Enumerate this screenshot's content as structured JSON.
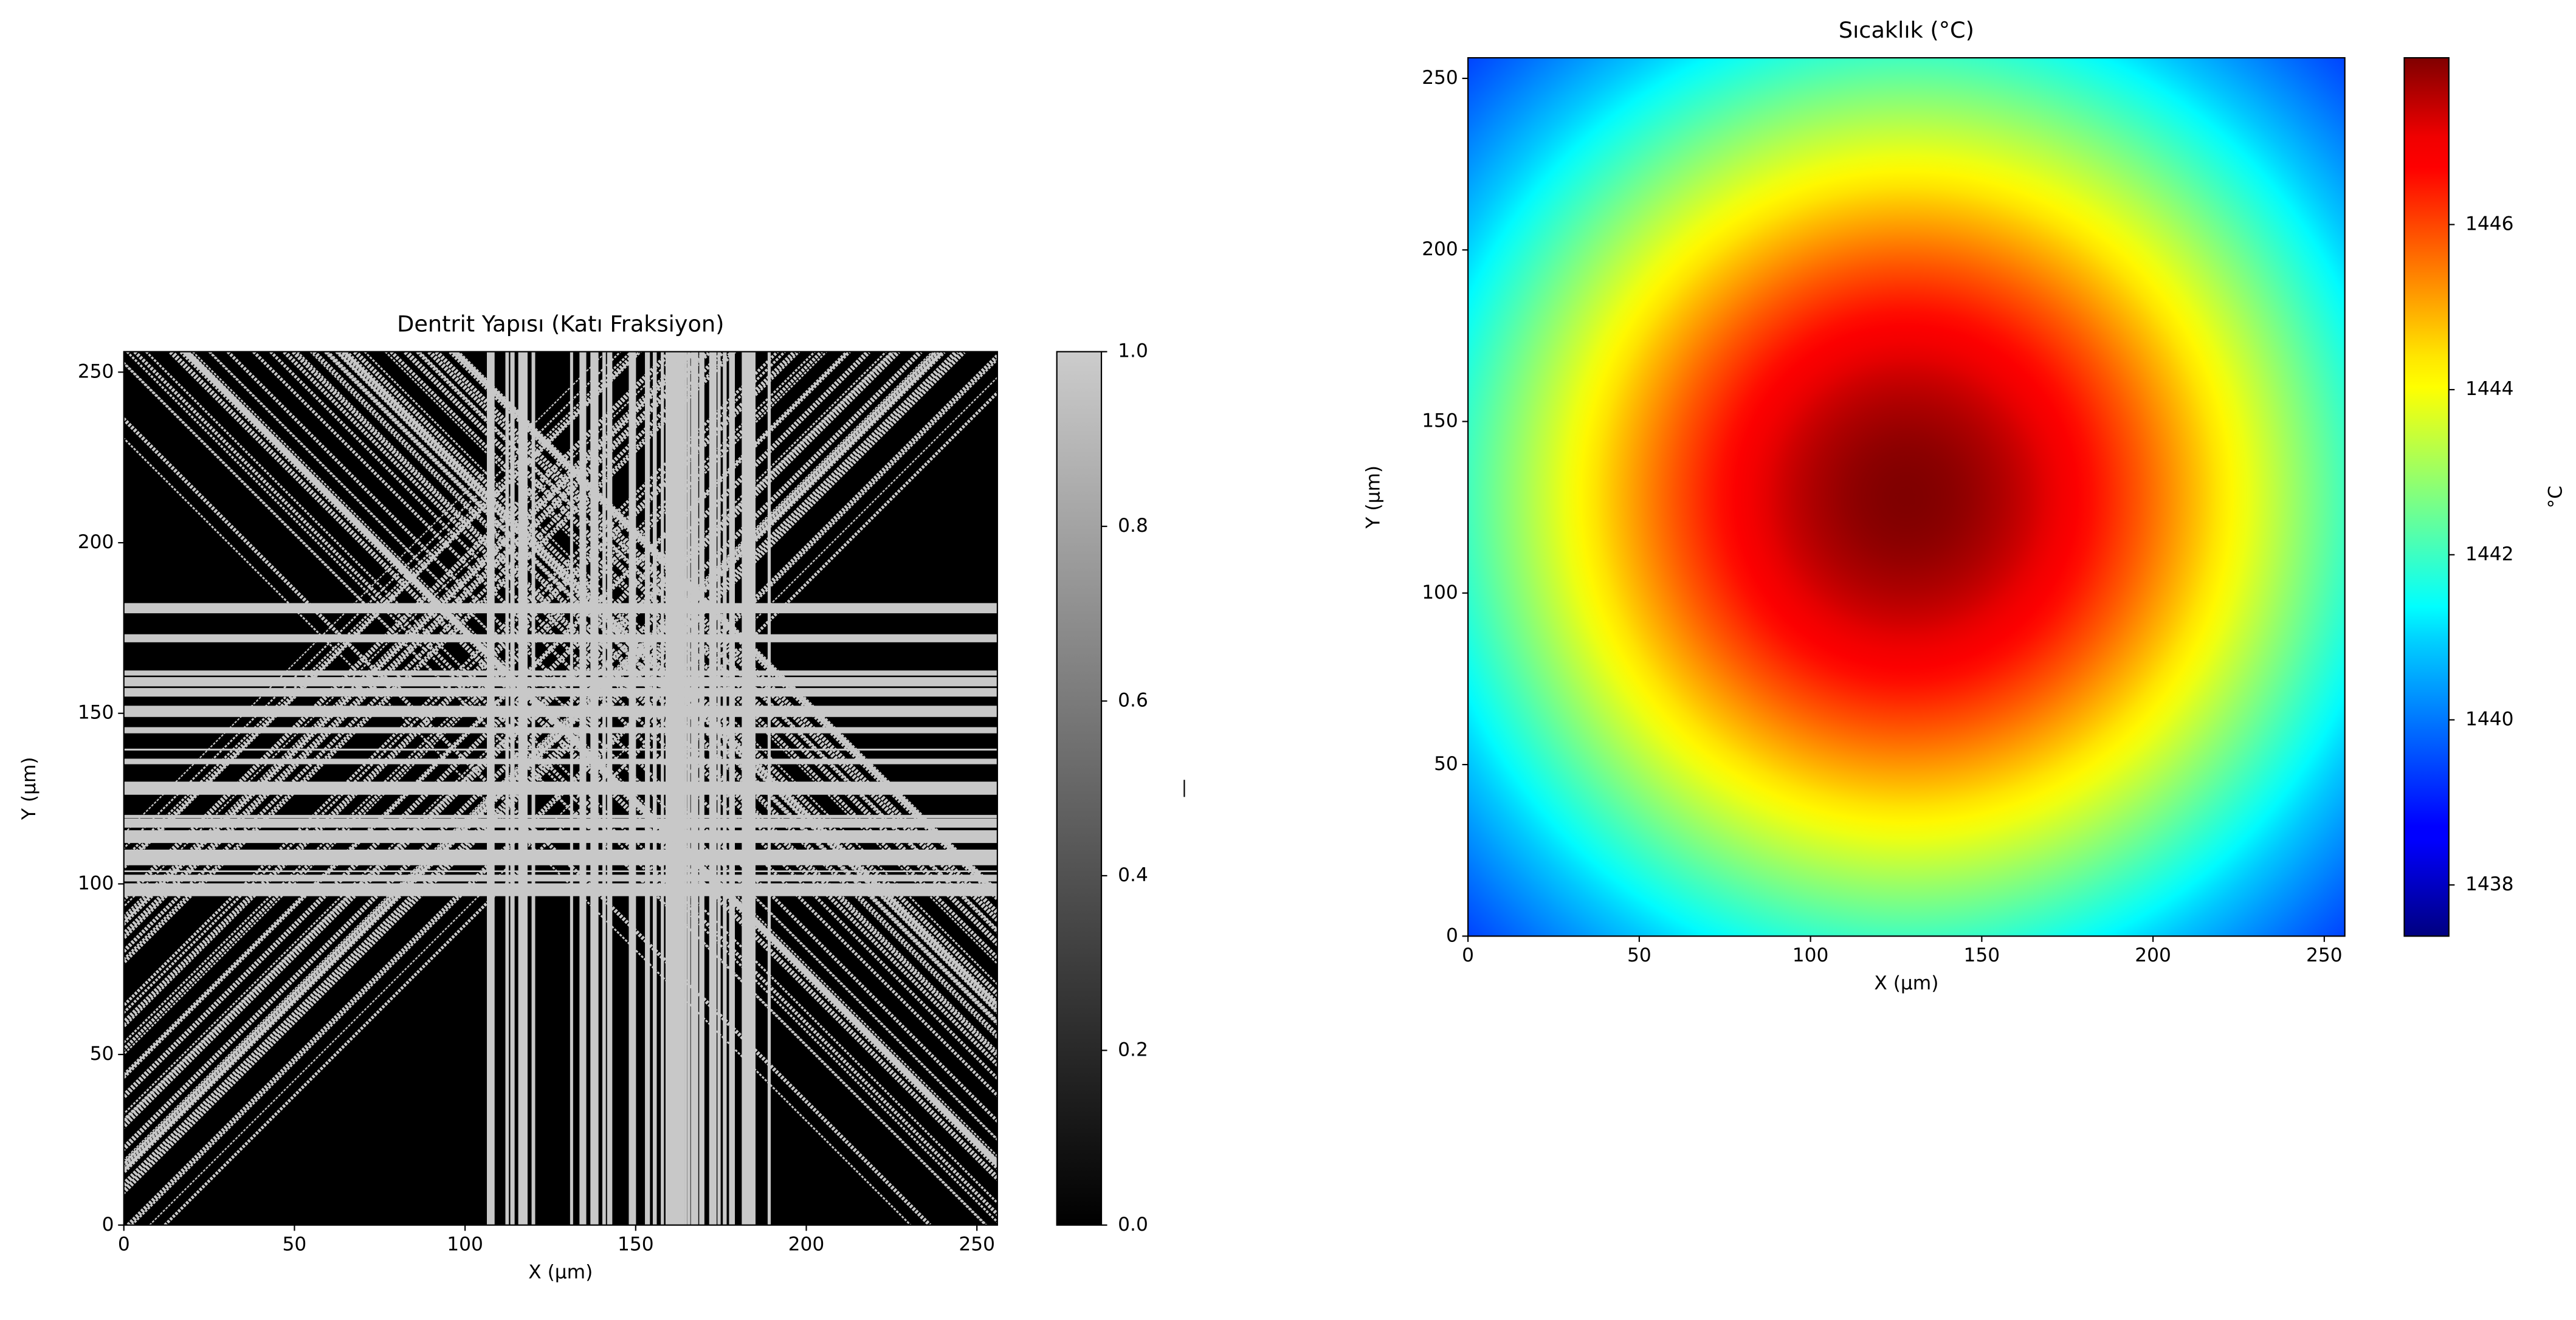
{
  "chart_data": [
    {
      "type": "heatmap",
      "title": "Dentrit Yapısı (Katı Fraksiyon)",
      "x_label": "X (μm)",
      "y_label": "Y (μm)",
      "xlim": [
        0,
        256
      ],
      "ylim": [
        0,
        256
      ],
      "xticks": [
        0,
        50,
        100,
        150,
        200,
        250
      ],
      "yticks": [
        0,
        50,
        100,
        150,
        200,
        250
      ],
      "cmap": "gray",
      "clim": [
        0,
        1
      ],
      "colorbar_label": "—",
      "colorbar_ticks": [
        {
          "value": 0,
          "label": "0.0"
        },
        {
          "value": 0.2,
          "label": "0.2"
        },
        {
          "value": 0.4,
          "label": "0.4"
        },
        {
          "value": 0.6,
          "label": "0.6"
        },
        {
          "value": 0.8,
          "label": "0.8"
        },
        {
          "value": 1,
          "label": "1.0"
        }
      ]
    },
    {
      "type": "heatmap",
      "title": "Sıcaklık (°C)",
      "x_label": "X (μm)",
      "y_label": "Y (μm)",
      "xlim": [
        0,
        256
      ],
      "ylim": [
        0,
        256
      ],
      "xticks": [
        0,
        50,
        100,
        150,
        200,
        250
      ],
      "yticks": [
        0,
        50,
        100,
        150,
        200,
        250
      ],
      "cmap": "jet",
      "clim": [
        1437.38,
        1448.02
      ],
      "colorbar_label": "°C",
      "colorbar_ticks": [
        1438,
        1440,
        1442,
        1444,
        1446
      ]
    }
  ]
}
